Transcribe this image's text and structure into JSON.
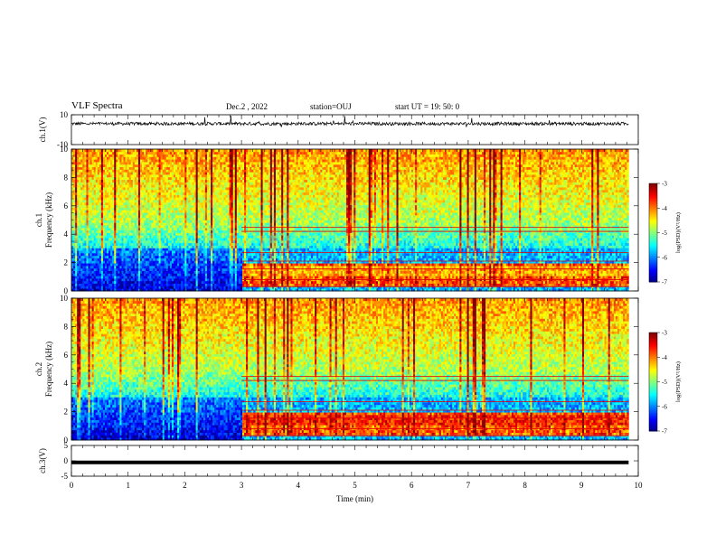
{
  "header": {
    "title": "VLF Spectra",
    "date": "Dec.2 , 2022",
    "station": "station=OUJ",
    "start_ut": "start UT = 19: 50: 0"
  },
  "chart_data": [
    {
      "type": "line",
      "panel": "ch1-waveform",
      "ylabel": "ch.1(V)",
      "ylim": [
        -10,
        10
      ],
      "ytick_labels": [
        "10",
        "-10"
      ],
      "xlim": [
        0,
        10
      ],
      "color": "#000000"
    },
    {
      "type": "heatmap",
      "panel": "ch1-spectrogram",
      "ylabel_line1": "ch.1",
      "ylabel_line2": "Frequency (kHz)",
      "ylim": [
        0,
        10
      ],
      "yticks": [
        0,
        2,
        4,
        6,
        8,
        10
      ],
      "xlim": [
        0,
        10
      ],
      "data_end_min": 9.83,
      "transition_min": 3.0,
      "colorbar": {
        "label": "log(PSD)(V²/Hz)",
        "range": [
          -7,
          -3
        ],
        "ticks": [
          "-3",
          "-4",
          "-5",
          "-6",
          "-7"
        ]
      }
    },
    {
      "type": "heatmap",
      "panel": "ch2-spectrogram",
      "ylabel_line1": "ch.2",
      "ylabel_line2": "Frequency (kHz)",
      "ylim": [
        0,
        10
      ],
      "yticks": [
        0,
        2,
        4,
        6,
        8,
        10
      ],
      "xlim": [
        0,
        10
      ],
      "data_end_min": 9.83,
      "transition_min": 3.0,
      "colorbar": {
        "label": "log(PSD)(V²/Hz)",
        "range": [
          -7,
          -3
        ],
        "ticks": [
          "-3",
          "-4",
          "-5",
          "-6",
          "-7"
        ]
      }
    },
    {
      "type": "line",
      "panel": "ch3-waveform",
      "ylabel": "ch.3(V)",
      "ylim": [
        -5,
        5
      ],
      "yticks": [
        5,
        0,
        -5
      ],
      "ytick_labels": [
        "5",
        "0",
        "-5"
      ],
      "xlim": [
        0,
        10
      ],
      "xticks": [
        0,
        1,
        2,
        3,
        4,
        5,
        6,
        7,
        8,
        9,
        10
      ],
      "xlabel": "Time (min)",
      "constant_value": -0.5,
      "color": "#000000"
    }
  ]
}
